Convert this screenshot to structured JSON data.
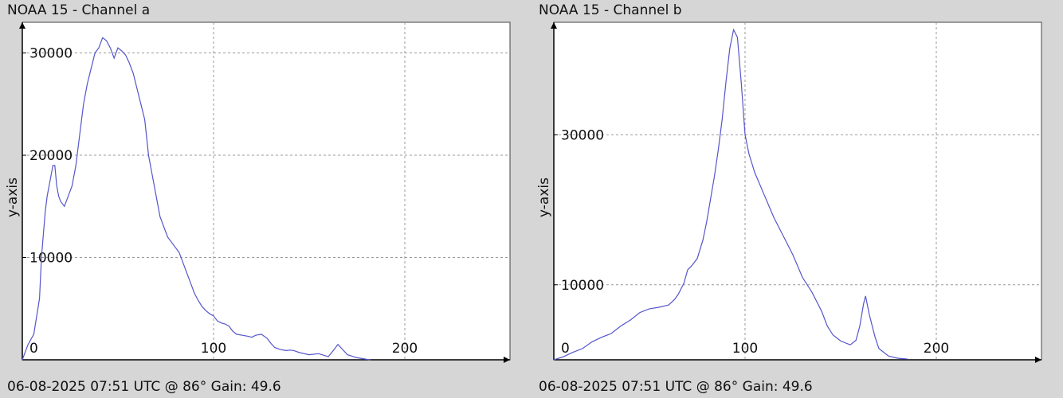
{
  "chart_data": [
    {
      "type": "line",
      "title": "NOAA 15 - Channel a",
      "footer": "06-08-2025 07:51 UTC @ 86° Gain: 49.6",
      "xlabel": "",
      "ylabel": "y-axis",
      "xlim": [
        0,
        255
      ],
      "ylim": [
        0,
        33000
      ],
      "x_ticks": [
        0,
        100,
        200
      ],
      "y_ticks": [
        10000,
        20000,
        30000
      ],
      "grid": true,
      "series": [
        {
          "x": [
            0,
            3,
            6,
            9,
            10,
            12,
            13,
            15,
            16,
            17,
            18,
            19,
            20,
            22,
            24,
            26,
            28,
            30,
            32,
            34,
            36,
            38,
            40,
            42,
            44,
            46,
            48,
            50,
            52,
            54,
            56,
            58,
            60,
            62,
            64,
            66,
            68,
            70,
            72,
            74,
            76,
            78,
            80,
            82,
            84,
            86,
            88,
            90,
            92,
            94,
            96,
            98,
            100,
            102,
            104,
            106,
            108,
            110,
            112,
            115,
            118,
            120,
            122,
            125,
            128,
            130,
            132,
            135,
            138,
            140,
            142,
            145,
            150,
            155,
            160,
            163,
            165,
            168,
            170,
            175,
            180,
            182
          ],
          "values": [
            0,
            1500,
            2500,
            6000,
            10000,
            14500,
            16000,
            18000,
            19000,
            19000,
            17000,
            16000,
            15500,
            15000,
            16000,
            17000,
            19000,
            22000,
            25000,
            27000,
            28500,
            30000,
            30500,
            31500,
            31200,
            30500,
            29500,
            30500,
            30200,
            29800,
            29000,
            28000,
            26500,
            25000,
            23500,
            20000,
            18000,
            16000,
            14000,
            13000,
            12000,
            11500,
            11000,
            10500,
            9500,
            8500,
            7500,
            6500,
            5800,
            5200,
            4800,
            4500,
            4300,
            3800,
            3600,
            3500,
            3300,
            2800,
            2500,
            2400,
            2300,
            2200,
            2400,
            2500,
            2100,
            1600,
            1200,
            1000,
            900,
            950,
            900,
            700,
            500,
            600,
            300,
            1000,
            1500,
            900,
            500,
            200,
            50,
            0
          ]
        }
      ]
    },
    {
      "type": "line",
      "title": "NOAA 15 - Channel b",
      "footer": "06-08-2025 07:51 UTC @ 86° Gain: 49.6",
      "xlabel": "",
      "ylabel": "y-axis",
      "xlim": [
        0,
        255
      ],
      "ylim": [
        0,
        45000
      ],
      "x_ticks": [
        0,
        100,
        200
      ],
      "y_ticks": [
        10000,
        30000
      ],
      "grid": true,
      "series": [
        {
          "x": [
            0,
            5,
            10,
            15,
            20,
            25,
            30,
            35,
            40,
            45,
            50,
            55,
            60,
            63,
            65,
            68,
            70,
            72,
            75,
            78,
            80,
            82,
            84,
            86,
            88,
            90,
            92,
            94,
            96,
            98,
            100,
            102,
            105,
            110,
            115,
            120,
            125,
            130,
            135,
            140,
            143,
            146,
            150,
            155,
            158,
            160,
            162,
            163,
            165,
            168,
            170,
            175,
            180,
            185
          ],
          "values": [
            0,
            400,
            1000,
            1500,
            2400,
            3000,
            3500,
            4500,
            5300,
            6300,
            6800,
            7000,
            7300,
            8000,
            8700,
            10200,
            12000,
            12500,
            13500,
            16000,
            18500,
            21500,
            24500,
            28000,
            32000,
            37000,
            41500,
            44000,
            43000,
            37000,
            30000,
            27500,
            25000,
            22000,
            19000,
            16500,
            14000,
            11000,
            9000,
            6500,
            4500,
            3300,
            2500,
            2000,
            2600,
            4500,
            7500,
            8500,
            6000,
            3000,
            1500,
            500,
            200,
            100
          ]
        }
      ]
    }
  ]
}
